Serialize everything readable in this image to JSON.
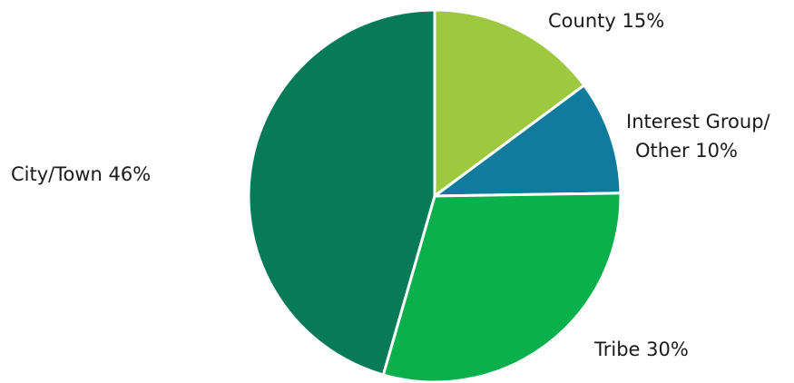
{
  "chart_data": {
    "type": "pie",
    "title": "",
    "start_angle_deg": 0,
    "direction": "clockwise",
    "legend": "none",
    "slices": [
      {
        "label": "County 15%",
        "value": 15,
        "color": "#9DC83F"
      },
      {
        "label": "Interest Group/ Other 10%",
        "value": 10,
        "color": "#107B9C"
      },
      {
        "label": "Tribe 30%",
        "value": 30,
        "color": "#0AB04C"
      },
      {
        "label": "City/Town 46%",
        "value": 46,
        "color": "#077A58"
      }
    ]
  }
}
